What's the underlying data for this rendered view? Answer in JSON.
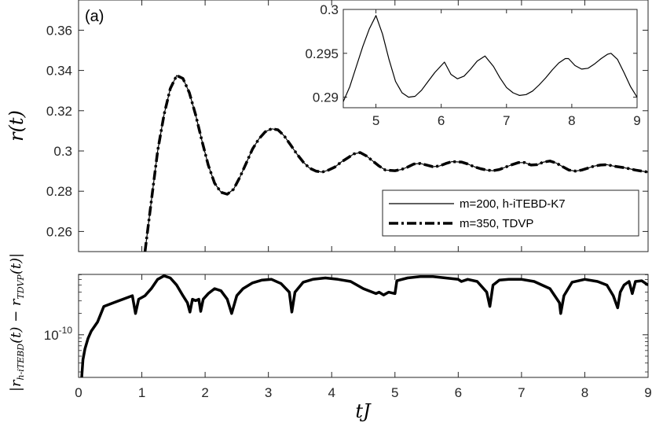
{
  "chart_data": [
    {
      "type": "line",
      "panel_label": "(a)",
      "xlabel": "",
      "ylabel": "r(t)",
      "xlim": [
        0,
        9
      ],
      "ylim": [
        0.25,
        0.375
      ],
      "xticks": [],
      "yticks": [
        "0.26",
        "0.28",
        "0.3",
        "0.32",
        "0.34",
        "0.36"
      ],
      "legend": {
        "placement": "bottom-right",
        "entries": [
          "m=200, h-iTEBD-K7",
          "m=350, TDVP"
        ]
      },
      "series": [
        {
          "name": "m=200, h-iTEBD-K7",
          "style": "solid-thin",
          "x": [
            1.05,
            1.15,
            1.25,
            1.35,
            1.45,
            1.55,
            1.65,
            1.75,
            1.85,
            1.95,
            2.05,
            2.15,
            2.25,
            2.35,
            2.45,
            2.55,
            2.65,
            2.75,
            2.85,
            2.95,
            3.05,
            3.15,
            3.25,
            3.35,
            3.45,
            3.55,
            3.65,
            3.75,
            3.85,
            3.95,
            4.05,
            4.15,
            4.25,
            4.35,
            4.45,
            4.55,
            4.65,
            4.75,
            4.85,
            5.0,
            5.1,
            5.2,
            5.3,
            5.4,
            5.5,
            5.6,
            5.7,
            5.8,
            5.9,
            6.05,
            6.15,
            6.25,
            6.35,
            6.45,
            6.55,
            6.65,
            6.75,
            6.85,
            6.95,
            7.05,
            7.15,
            7.25,
            7.35,
            7.45,
            7.55,
            7.65,
            7.75,
            7.85,
            7.95,
            8.05,
            8.15,
            8.25,
            8.35,
            8.45,
            8.6,
            8.7,
            8.8,
            8.9,
            9.0
          ],
          "values": [
            0.25,
            0.275,
            0.3,
            0.318,
            0.331,
            0.3375,
            0.336,
            0.329,
            0.318,
            0.305,
            0.293,
            0.284,
            0.2795,
            0.2785,
            0.281,
            0.287,
            0.294,
            0.301,
            0.306,
            0.3095,
            0.311,
            0.3105,
            0.3075,
            0.303,
            0.2985,
            0.2945,
            0.2915,
            0.29,
            0.2895,
            0.2905,
            0.292,
            0.2945,
            0.2965,
            0.2985,
            0.2992,
            0.2975,
            0.295,
            0.2925,
            0.2905,
            0.2902,
            0.2908,
            0.292,
            0.2935,
            0.2938,
            0.293,
            0.2922,
            0.2925,
            0.2937,
            0.2947,
            0.2945,
            0.2935,
            0.2922,
            0.2912,
            0.2905,
            0.2902,
            0.2908,
            0.292,
            0.2932,
            0.2942,
            0.2942,
            0.293,
            0.2932,
            0.2945,
            0.295,
            0.294,
            0.2922,
            0.2905,
            0.29,
            0.2905,
            0.2915,
            0.2925,
            0.293,
            0.2932,
            0.2925,
            0.2918,
            0.2912,
            0.2905,
            0.29,
            0.2895
          ]
        },
        {
          "name": "m=350, TDVP",
          "style": "dash-dot-thick",
          "x": [
            1.05,
            1.15,
            1.25,
            1.35,
            1.45,
            1.55,
            1.65,
            1.75,
            1.85,
            1.95,
            2.05,
            2.15,
            2.25,
            2.35,
            2.45,
            2.55,
            2.65,
            2.75,
            2.85,
            2.95,
            3.05,
            3.15,
            3.25,
            3.35,
            3.45,
            3.55,
            3.65,
            3.75,
            3.85,
            3.95,
            4.05,
            4.15,
            4.25,
            4.35,
            4.45,
            4.55,
            4.65,
            4.75,
            4.85,
            5.0,
            5.1,
            5.2,
            5.3,
            5.4,
            5.5,
            5.6,
            5.7,
            5.8,
            5.9,
            6.05,
            6.15,
            6.25,
            6.35,
            6.45,
            6.55,
            6.65,
            6.75,
            6.85,
            6.95,
            7.05,
            7.15,
            7.25,
            7.35,
            7.45,
            7.55,
            7.65,
            7.75,
            7.85,
            7.95,
            8.05,
            8.15,
            8.25,
            8.35,
            8.45,
            8.6,
            8.7,
            8.8,
            8.9,
            9.0
          ],
          "values": [
            0.25,
            0.275,
            0.3,
            0.318,
            0.331,
            0.3375,
            0.336,
            0.329,
            0.318,
            0.305,
            0.293,
            0.284,
            0.2795,
            0.2785,
            0.281,
            0.287,
            0.294,
            0.301,
            0.306,
            0.3095,
            0.311,
            0.3105,
            0.3075,
            0.303,
            0.2985,
            0.2945,
            0.2915,
            0.29,
            0.2895,
            0.2905,
            0.292,
            0.2945,
            0.2965,
            0.2985,
            0.2992,
            0.2975,
            0.295,
            0.2925,
            0.2905,
            0.2902,
            0.2908,
            0.292,
            0.2935,
            0.2938,
            0.293,
            0.2922,
            0.2925,
            0.2937,
            0.2947,
            0.2945,
            0.2935,
            0.2922,
            0.2912,
            0.2905,
            0.2902,
            0.2908,
            0.292,
            0.2932,
            0.2942,
            0.2942,
            0.293,
            0.2932,
            0.2945,
            0.295,
            0.294,
            0.2922,
            0.2905,
            0.29,
            0.2905,
            0.2915,
            0.2925,
            0.293,
            0.2932,
            0.2925,
            0.2918,
            0.2912,
            0.2905,
            0.29,
            0.2895
          ]
        }
      ]
    },
    {
      "type": "line",
      "role": "inset",
      "xlim": [
        4.5,
        9
      ],
      "ylim": [
        0.2888,
        0.3
      ],
      "xticks": [
        "5",
        "6",
        "7",
        "8",
        "9"
      ],
      "yticks": [
        "0.29",
        "0.295",
        "0.3"
      ],
      "series": [
        {
          "name": "",
          "x": [
            4.5,
            4.6,
            4.7,
            4.8,
            4.9,
            5.0,
            5.1,
            5.2,
            5.3,
            5.4,
            5.5,
            5.6,
            5.7,
            5.8,
            5.9,
            6.0,
            6.05,
            6.15,
            6.25,
            6.35,
            6.45,
            6.55,
            6.67,
            6.8,
            6.9,
            7.0,
            7.1,
            7.2,
            7.3,
            7.4,
            7.5,
            7.6,
            7.7,
            7.8,
            7.9,
            7.95,
            8.05,
            8.15,
            8.25,
            8.35,
            8.45,
            8.55,
            8.6,
            8.7,
            8.8,
            8.9,
            9.0
          ],
          "values": [
            0.2895,
            0.2912,
            0.2935,
            0.2958,
            0.2978,
            0.2993,
            0.2972,
            0.2943,
            0.2918,
            0.2905,
            0.29,
            0.2901,
            0.2908,
            0.2918,
            0.2928,
            0.2936,
            0.294,
            0.2926,
            0.2921,
            0.2924,
            0.2932,
            0.2941,
            0.2947,
            0.2935,
            0.2922,
            0.2911,
            0.2905,
            0.2902,
            0.2903,
            0.2907,
            0.2914,
            0.2922,
            0.2931,
            0.2939,
            0.2944,
            0.2944,
            0.2936,
            0.2932,
            0.2933,
            0.2938,
            0.2944,
            0.2949,
            0.295,
            0.2943,
            0.2928,
            0.2912,
            0.29
          ]
        }
      ]
    },
    {
      "type": "line",
      "role": "difference",
      "xlabel": "tJ",
      "ylabel": "|r_h-iTEBD(t) − r_TDVP(t)|",
      "ylabel_parts": {
        "prefix": "|r",
        "sub1": "h-iTEBD",
        "mid": "(t) − r",
        "sub2": "TDVP",
        "suffix": "(t)|"
      },
      "yscale": "log",
      "xlim": [
        0,
        9
      ],
      "ylim_log10": [
        -10.6,
        -9.15
      ],
      "xticks": [
        "0",
        "1",
        "2",
        "3",
        "4",
        "5",
        "6",
        "7",
        "8",
        "9"
      ],
      "yticks": [
        {
          "base": "10",
          "exp": "-10"
        }
      ],
      "series": [
        {
          "name": "",
          "x": [
            0.05,
            0.07,
            0.1,
            0.15,
            0.2,
            0.3,
            0.4,
            0.55,
            0.7,
            0.85,
            0.9,
            0.95,
            1.05,
            1.15,
            1.25,
            1.35,
            1.45,
            1.55,
            1.65,
            1.72,
            1.76,
            1.8,
            1.85,
            1.9,
            1.93,
            1.97,
            2.05,
            2.15,
            2.25,
            2.35,
            2.42,
            2.5,
            2.6,
            2.75,
            2.9,
            3.05,
            3.2,
            3.33,
            3.37,
            3.42,
            3.55,
            3.7,
            3.9,
            4.1,
            4.3,
            4.5,
            4.7,
            4.75,
            4.82,
            4.9,
            5.0,
            5.03,
            5.2,
            5.4,
            5.6,
            5.8,
            6.0,
            6.05,
            6.15,
            6.3,
            6.45,
            6.5,
            6.55,
            6.65,
            6.8,
            7.0,
            7.2,
            7.45,
            7.6,
            7.62,
            7.67,
            7.8,
            8.0,
            8.2,
            8.35,
            8.45,
            8.52,
            8.56,
            8.62,
            8.7,
            8.75,
            8.8,
            8.9,
            9.0
          ],
          "values": [
            -10.6,
            -10.35,
            -10.2,
            -10.05,
            -9.95,
            -9.82,
            -9.6,
            -9.55,
            -9.5,
            -9.45,
            -9.7,
            -9.5,
            -9.45,
            -9.35,
            -9.22,
            -9.17,
            -9.2,
            -9.3,
            -9.45,
            -9.55,
            -9.68,
            -9.5,
            -9.52,
            -9.5,
            -9.67,
            -9.5,
            -9.42,
            -9.35,
            -9.38,
            -9.5,
            -9.7,
            -9.45,
            -9.35,
            -9.27,
            -9.23,
            -9.22,
            -9.28,
            -9.4,
            -9.68,
            -9.4,
            -9.26,
            -9.22,
            -9.2,
            -9.22,
            -9.25,
            -9.35,
            -9.42,
            -9.4,
            -9.44,
            -9.4,
            -9.42,
            -9.24,
            -9.2,
            -9.18,
            -9.18,
            -9.2,
            -9.22,
            -9.25,
            -9.22,
            -9.25,
            -9.4,
            -9.6,
            -9.3,
            -9.23,
            -9.22,
            -9.22,
            -9.25,
            -9.35,
            -9.55,
            -9.7,
            -9.45,
            -9.26,
            -9.22,
            -9.25,
            -9.3,
            -9.45,
            -9.62,
            -9.4,
            -9.3,
            -9.25,
            -9.42,
            -9.25,
            -9.24,
            -9.3
          ]
        }
      ]
    }
  ]
}
